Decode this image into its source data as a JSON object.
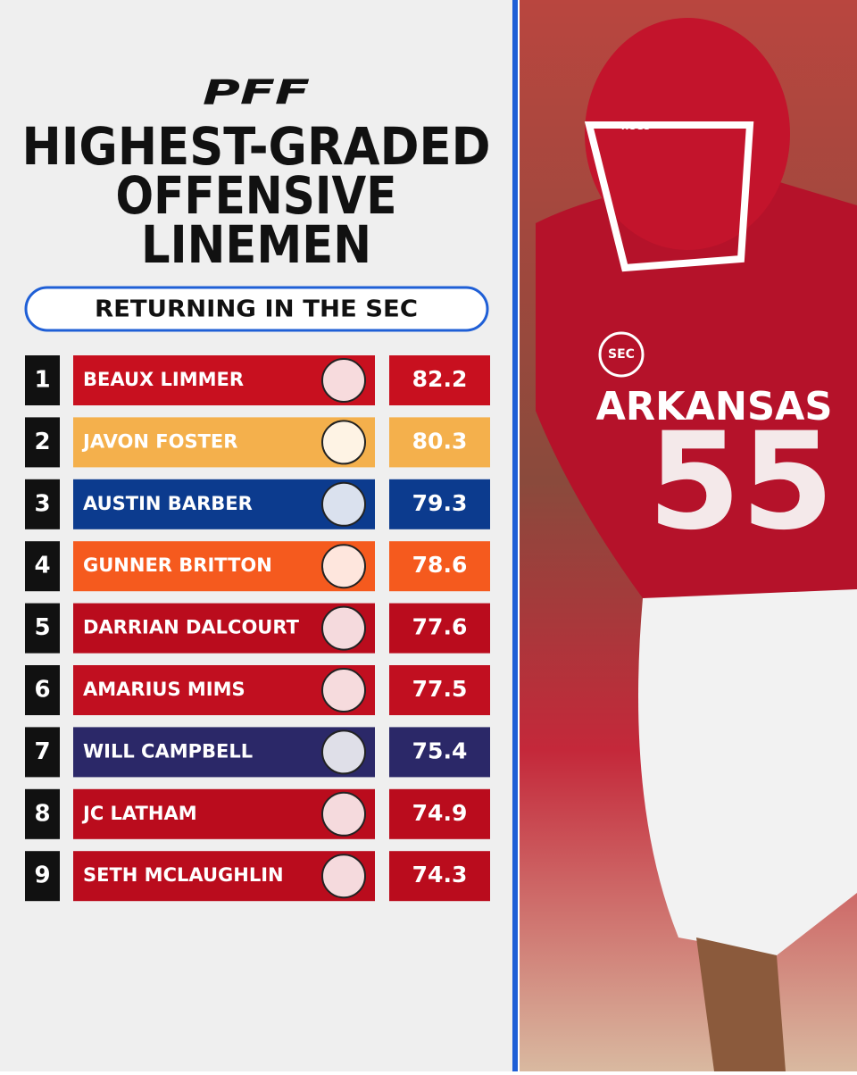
{
  "header": {
    "logo": "PFF",
    "title_lines": [
      "HIGHEST-GRADED",
      "OFFENSIVE",
      "LINEMEN"
    ],
    "subtitle": "RETURNING IN THE SEC"
  },
  "table": {
    "rows": [
      {
        "rank": "1",
        "name": "BEAUX LIMMER",
        "grade": "82.2",
        "color": "#c8101f"
      },
      {
        "rank": "2",
        "name": "JAVON FOSTER",
        "grade": "80.3",
        "color": "#f4b04c"
      },
      {
        "rank": "3",
        "name": "AUSTIN BARBER",
        "grade": "79.3",
        "color": "#0c3b8e"
      },
      {
        "rank": "4",
        "name": "GUNNER BRITTON",
        "grade": "78.6",
        "color": "#f55a1e"
      },
      {
        "rank": "5",
        "name": "DARRIAN DALCOURT",
        "grade": "77.6",
        "color": "#ba0c1d"
      },
      {
        "rank": "6",
        "name": "AMARIUS MIMS",
        "grade": "77.5",
        "color": "#c10f20"
      },
      {
        "rank": "7",
        "name": "WILL CAMPBELL",
        "grade": "75.4",
        "color": "#2b2868"
      },
      {
        "rank": "8",
        "name": "JC LATHAM",
        "grade": "74.9",
        "color": "#ba0c1d"
      },
      {
        "rank": "9",
        "name": "SETH MCLAUGHLIN",
        "grade": "74.3",
        "color": "#ba0c1d"
      }
    ]
  },
  "photo": {
    "patch": "SEC",
    "helmet": "HOGS",
    "jersey": "ARKANSAS",
    "number": "55"
  }
}
